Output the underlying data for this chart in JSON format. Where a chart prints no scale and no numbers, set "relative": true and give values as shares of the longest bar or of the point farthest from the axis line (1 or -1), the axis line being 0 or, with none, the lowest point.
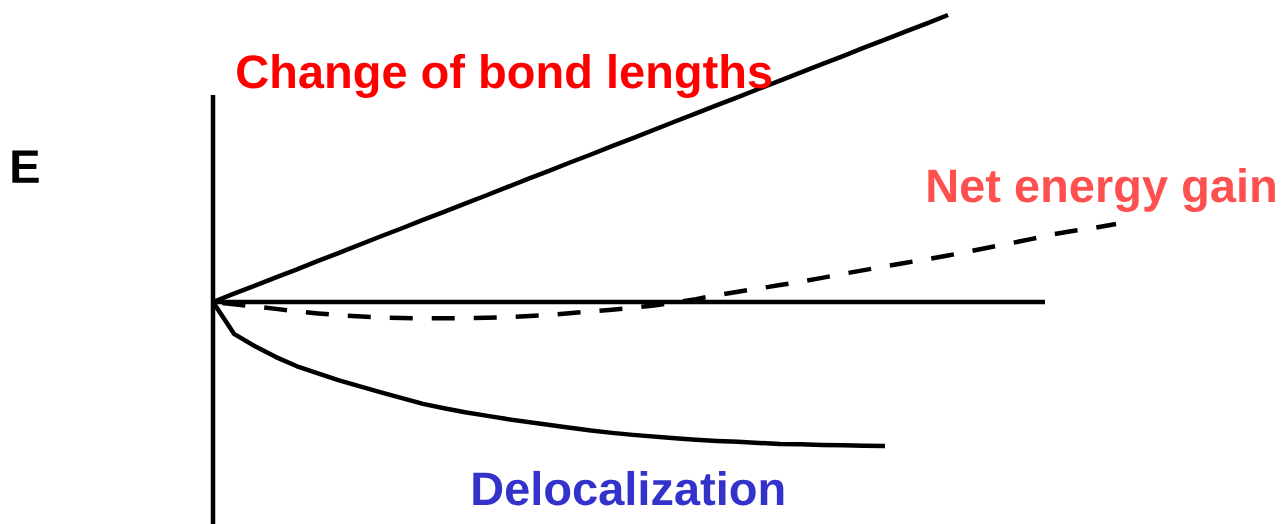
{
  "chart_data": {
    "type": "line",
    "relative": true,
    "ylabel": "E",
    "categories": [
      null,
      null,
      null,
      null,
      null,
      null,
      null,
      null,
      null,
      null,
      null,
      null,
      null,
      null,
      null,
      null,
      null,
      null,
      null,
      null,
      null,
      null,
      null,
      null,
      null,
      null,
      null,
      null,
      null,
      null,
      null,
      null,
      null,
      null,
      null,
      null,
      null,
      null,
      null,
      null,
      null,
      null,
      null,
      null
    ],
    "series": [
      {
        "name": "Change of bond lengths",
        "color": "#000000",
        "line_style": "solid",
        "values": [
          0,
          0.029,
          0.057,
          0.086,
          0.114,
          0.143,
          0.171,
          0.2,
          0.229,
          0.257,
          0.286,
          0.314,
          0.343,
          0.371,
          0.4,
          0.429,
          0.457,
          0.486,
          0.514,
          0.543,
          0.571,
          0.6,
          0.629,
          0.657,
          0.686,
          0.714,
          0.743,
          0.771,
          0.8,
          0.829,
          0.857,
          0.886,
          0.914,
          0.943,
          0.971,
          1,
          null,
          null,
          null,
          null,
          null,
          null,
          null,
          null
        ]
      },
      {
        "name": "Net energy gain",
        "color": "#000000",
        "line_style": "dashed",
        "values": [
          0,
          -0.008,
          -0.016,
          -0.024,
          -0.033,
          -0.04,
          -0.046,
          -0.05,
          -0.054,
          -0.056,
          -0.057,
          -0.057,
          -0.056,
          -0.055,
          -0.053,
          -0.049,
          -0.045,
          -0.039,
          -0.033,
          -0.027,
          -0.02,
          -0.012,
          -0.002,
          0.01,
          0.024,
          0.036,
          0.047,
          0.059,
          0.071,
          0.084,
          0.098,
          0.111,
          0.124,
          0.137,
          0.149,
          0.162,
          0.176,
          0.191,
          0.205,
          0.22,
          0.236,
          0.248,
          0.259,
          0.272
        ]
      },
      {
        "name": "Delocalization",
        "color": "#000000",
        "line_style": "solid",
        "values": [
          0,
          -0.111,
          -0.154,
          -0.192,
          -0.224,
          -0.249,
          -0.273,
          -0.294,
          -0.315,
          -0.335,
          -0.355,
          -0.37,
          -0.384,
          -0.396,
          -0.408,
          -0.418,
          -0.428,
          -0.438,
          -0.448,
          -0.456,
          -0.463,
          -0.469,
          -0.475,
          -0.48,
          -0.484,
          -0.487,
          -0.491,
          -0.495,
          -0.496,
          -0.498,
          -0.499,
          -0.501,
          -0.502,
          null,
          null,
          null,
          null,
          null,
          null,
          null,
          null,
          null,
          null,
          null
        ]
      }
    ]
  }
}
